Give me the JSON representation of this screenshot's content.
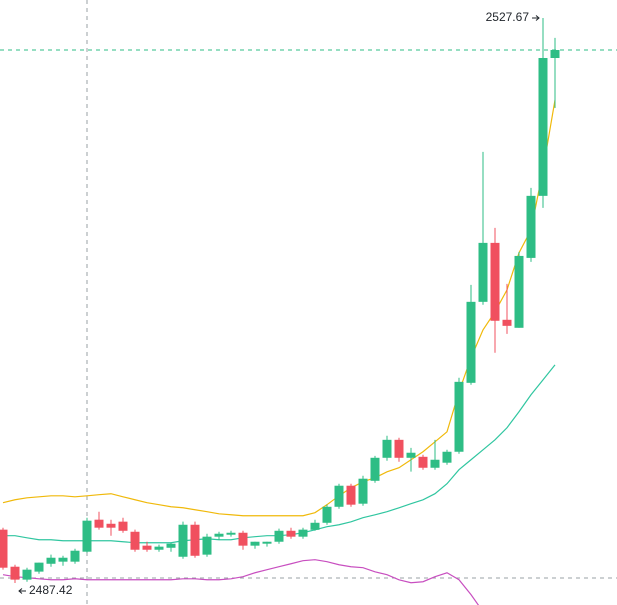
{
  "chart_data": {
    "type": "candlestick",
    "up_color": "#2ebd85",
    "down_color": "#f0505f",
    "open": [
      2491.22,
      2488.58,
      2487.66,
      2488.23,
      2488.79,
      2488.94,
      2488.94,
      2489.65,
      2491.93,
      2491.64,
      2491.79,
      2491.07,
      2490.08,
      2489.79,
      2489.93,
      2489.29,
      2491.57,
      2489.44,
      2490.72,
      2490.86,
      2491.0,
      2490.08,
      2490.22,
      2490.36,
      2491.14,
      2490.72,
      2491.21,
      2491.71,
      2492.85,
      2494.35,
      2493.07,
      2494.7,
      2496.34,
      2497.62,
      2496.34,
      2496.41,
      2495.63,
      2495.99,
      2496.77,
      2501.68,
      2507.45,
      2511.65,
      2506.17,
      2505.6,
      2510.58,
      2515.0,
      2524.82
    ],
    "high": [
      2491.36,
      2488.72,
      2488.51,
      2488.87,
      2489.44,
      2489.36,
      2489.86,
      2492.07,
      2492.5,
      2491.93,
      2492.07,
      2491.22,
      2490.36,
      2490.15,
      2490.29,
      2491.79,
      2491.79,
      2490.93,
      2491.07,
      2491.14,
      2491.14,
      2490.36,
      2490.36,
      2491.29,
      2491.36,
      2491.36,
      2491.93,
      2493.0,
      2494.49,
      2494.49,
      2495.06,
      2496.48,
      2497.91,
      2497.77,
      2497.05,
      2496.56,
      2497.62,
      2496.91,
      2502.04,
      2508.66,
      2518.13,
      2512.72,
      2508.73,
      2511.01,
      2515.57,
      2527.67,
      2526.25
    ],
    "low": [
      2488.37,
      2487.42,
      2487.51,
      2488.08,
      2488.58,
      2488.65,
      2488.79,
      2489.58,
      2491.22,
      2490.79,
      2491.0,
      2489.65,
      2489.65,
      2489.65,
      2489.65,
      2489.15,
      2489.22,
      2489.29,
      2490.5,
      2490.72,
      2489.79,
      2489.86,
      2490.01,
      2490.22,
      2490.57,
      2490.57,
      2491.14,
      2491.57,
      2492.71,
      2492.85,
      2492.92,
      2494.56,
      2496.13,
      2496.06,
      2495.35,
      2495.49,
      2495.49,
      2495.84,
      2496.63,
      2501.54,
      2507.24,
      2503.82,
      2505.17,
      2505.6,
      2510.3,
      2514.14,
      2521.26
    ],
    "close": [
      2488.51,
      2487.66,
      2488.37,
      2488.87,
      2489.22,
      2489.22,
      2489.72,
      2491.86,
      2491.36,
      2491.36,
      2491.14,
      2489.79,
      2489.79,
      2490.01,
      2490.22,
      2491.57,
      2489.36,
      2490.72,
      2490.93,
      2491.0,
      2490.08,
      2490.36,
      2490.36,
      2491.14,
      2490.72,
      2491.22,
      2491.71,
      2492.85,
      2494.35,
      2493.0,
      2494.85,
      2496.34,
      2497.62,
      2496.34,
      2496.7,
      2495.63,
      2496.2,
      2496.77,
      2501.75,
      2507.45,
      2511.65,
      2506.1,
      2505.74,
      2510.72,
      2515.0,
      2524.82,
      2525.39
    ],
    "series": [
      {
        "color": "#f0b90b",
        "values": [
          2493.14,
          2493.35,
          2493.49,
          2493.56,
          2493.63,
          2493.63,
          2493.56,
          2493.63,
          2493.71,
          2493.78,
          2493.56,
          2493.35,
          2493.14,
          2493.0,
          2492.85,
          2492.78,
          2492.64,
          2492.5,
          2492.35,
          2492.28,
          2492.21,
          2492.21,
          2492.21,
          2492.21,
          2492.21,
          2492.21,
          2492.43,
          2493.0,
          2493.63,
          2494.2,
          2494.63,
          2494.92,
          2495.34,
          2495.63,
          2496.2,
          2496.77,
          2497.48,
          2498.19,
          2501.04,
          2503.46,
          2505.45,
          2506.74,
          2508.3,
          2510.94,
          2512.57,
          2516.85,
          2521.83
        ]
      },
      {
        "color": "#30c6a0",
        "values": [
          2490.79,
          2490.79,
          2490.64,
          2490.5,
          2490.5,
          2490.43,
          2490.43,
          2490.43,
          2490.43,
          2490.43,
          2490.36,
          2490.29,
          2490.29,
          2490.29,
          2490.29,
          2490.43,
          2490.5,
          2490.57,
          2490.5,
          2490.5,
          2490.64,
          2490.72,
          2490.79,
          2490.79,
          2490.86,
          2491.0,
          2491.21,
          2491.43,
          2491.57,
          2491.78,
          2492.07,
          2492.28,
          2492.5,
          2492.78,
          2493.07,
          2493.35,
          2493.78,
          2494.49,
          2495.49,
          2496.2,
          2496.91,
          2497.62,
          2498.48,
          2499.62,
          2500.83,
          2501.89,
          2502.96
        ]
      },
      {
        "color": "#c84fc0",
        "values": [
          2488.01,
          2487.87,
          2487.8,
          2487.72,
          2487.65,
          2487.65,
          2487.72,
          2487.65,
          2487.65,
          2487.65,
          2487.65,
          2487.65,
          2487.65,
          2487.65,
          2487.65,
          2487.72,
          2487.72,
          2487.65,
          2487.65,
          2487.72,
          2487.87,
          2488.15,
          2488.37,
          2488.58,
          2488.79,
          2489.01,
          2489.08,
          2488.94,
          2488.72,
          2488.58,
          2488.51,
          2488.22,
          2488.01,
          2487.65,
          2487.44,
          2487.51,
          2487.87,
          2488.15,
          2487.65,
          2486.59,
          2485.38,
          null,
          null,
          null,
          null,
          null,
          null
        ]
      }
    ],
    "high_label": 2527.67,
    "low_label": 2487.42
  }
}
